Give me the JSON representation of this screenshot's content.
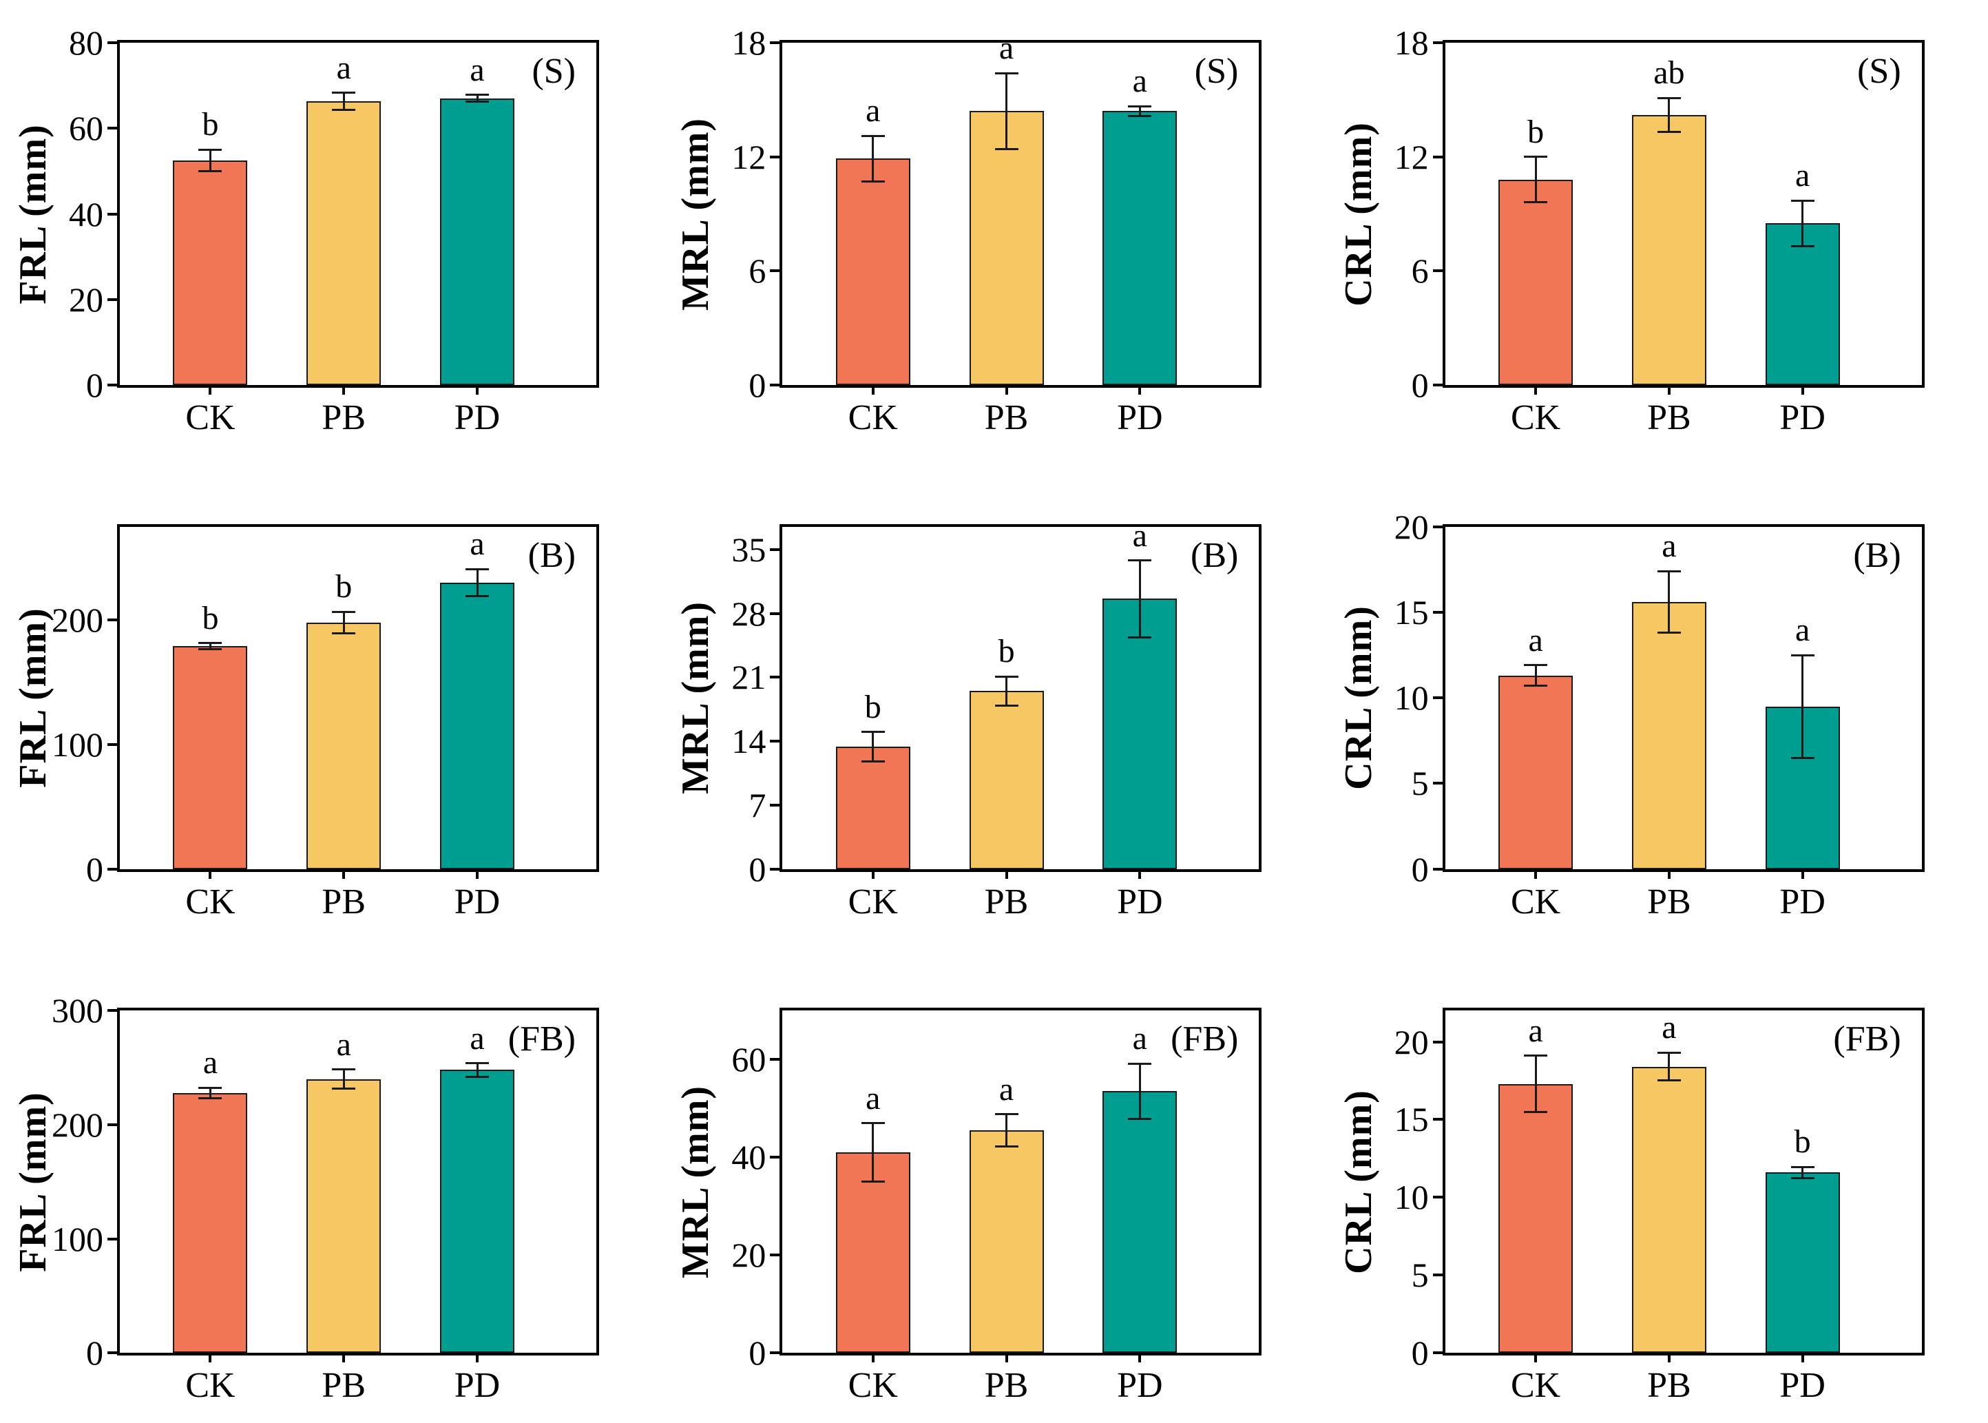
{
  "figure": {
    "background": "#ffffff",
    "axis_color": "#000000",
    "bar_edge_color": "#1a1a1a",
    "treatments": [
      "CK",
      "PB",
      "PD"
    ],
    "treatment_colors": [
      "#F07655",
      "#F6C763",
      "#009E90"
    ],
    "row_panels": [
      "(S)",
      "(B)",
      "(FB)"
    ],
    "column_measures": [
      "FRL (mm)",
      "MRL (mm)",
      "CRL (mm)"
    ]
  },
  "chart_data": [
    {
      "type": "bar",
      "panel": "(S)",
      "ylabel": "FRL (mm)",
      "categories": [
        "CK",
        "PB",
        "PD"
      ],
      "values": [
        52.5,
        66.3,
        67.0
      ],
      "errors": [
        2.5,
        2.0,
        0.8
      ],
      "sig_letters": [
        "b",
        "a",
        "a"
      ],
      "ylim": [
        0,
        80
      ],
      "yticks": [
        0,
        20,
        40,
        60,
        80
      ],
      "grid": false,
      "legend": "none"
    },
    {
      "type": "bar",
      "panel": "(S)",
      "ylabel": "MRL (mm)",
      "categories": [
        "CK",
        "PB",
        "PD"
      ],
      "values": [
        11.9,
        14.4,
        14.4
      ],
      "errors": [
        1.2,
        2.0,
        0.25
      ],
      "sig_letters": [
        "a",
        "a",
        "a"
      ],
      "ylim": [
        0,
        18
      ],
      "yticks": [
        0,
        6,
        12,
        18
      ],
      "grid": false,
      "legend": "none"
    },
    {
      "type": "bar",
      "panel": "(S)",
      "ylabel": "CRL (mm)",
      "categories": [
        "CK",
        "PB",
        "PD"
      ],
      "values": [
        10.8,
        14.2,
        8.5
      ],
      "errors": [
        1.2,
        0.9,
        1.2
      ],
      "sig_letters": [
        "b",
        "ab",
        "a"
      ],
      "ylim": [
        0,
        18
      ],
      "yticks": [
        0,
        6,
        12,
        18
      ],
      "grid": false,
      "legend": "none"
    },
    {
      "type": "bar",
      "panel": "(B)",
      "ylabel": "FRL (mm)",
      "categories": [
        "CK",
        "PB",
        "PD"
      ],
      "values": [
        179,
        198,
        230
      ],
      "errors": [
        2.5,
        8.5,
        11
      ],
      "sig_letters": [
        "b",
        "b",
        "a"
      ],
      "ylim": [
        0,
        275
      ],
      "yticks": [
        0,
        100,
        200
      ],
      "grid": false,
      "legend": "none"
    },
    {
      "type": "bar",
      "panel": "(B)",
      "ylabel": "MRL (mm)",
      "categories": [
        "CK",
        "PB",
        "PD"
      ],
      "values": [
        13.4,
        19.5,
        29.6
      ],
      "errors": [
        1.6,
        1.6,
        4.2
      ],
      "sig_letters": [
        "b",
        "b",
        "a"
      ],
      "ylim": [
        0,
        37.5
      ],
      "yticks": [
        0,
        7,
        14,
        21,
        28,
        35
      ],
      "grid": false,
      "legend": "none"
    },
    {
      "type": "bar",
      "panel": "(B)",
      "ylabel": "CRL (mm)",
      "categories": [
        "CK",
        "PB",
        "PD"
      ],
      "values": [
        11.3,
        15.6,
        9.5
      ],
      "errors": [
        0.6,
        1.8,
        3.0
      ],
      "sig_letters": [
        "a",
        "a",
        "a"
      ],
      "ylim": [
        0,
        20
      ],
      "yticks": [
        0,
        5,
        10,
        15,
        20
      ],
      "grid": false,
      "legend": "none"
    },
    {
      "type": "bar",
      "panel": "(FB)",
      "ylabel": "FRL (mm)",
      "categories": [
        "CK",
        "PB",
        "PD"
      ],
      "values": [
        228,
        240,
        248
      ],
      "errors": [
        4.5,
        8.5,
        6.0
      ],
      "sig_letters": [
        "a",
        "a",
        "a"
      ],
      "ylim": [
        0,
        300
      ],
      "yticks": [
        0,
        100,
        200,
        300
      ],
      "grid": false,
      "legend": "none"
    },
    {
      "type": "bar",
      "panel": "(FB)",
      "ylabel": "MRL (mm)",
      "categories": [
        "CK",
        "PB",
        "PD"
      ],
      "values": [
        41.0,
        45.5,
        53.5
      ],
      "errors": [
        6.0,
        3.3,
        5.7
      ],
      "sig_letters": [
        "a",
        "a",
        "a"
      ],
      "ylim": [
        0,
        70
      ],
      "yticks": [
        0,
        20,
        40,
        60
      ],
      "grid": false,
      "legend": "none"
    },
    {
      "type": "bar",
      "panel": "(FB)",
      "ylabel": "CRL (mm)",
      "categories": [
        "CK",
        "PB",
        "PD"
      ],
      "values": [
        17.3,
        18.4,
        11.6
      ],
      "errors": [
        1.8,
        0.9,
        0.35
      ],
      "sig_letters": [
        "a",
        "a",
        "b"
      ],
      "ylim": [
        0,
        22
      ],
      "yticks": [
        0,
        5,
        10,
        15,
        20
      ],
      "grid": false,
      "legend": "none"
    }
  ]
}
